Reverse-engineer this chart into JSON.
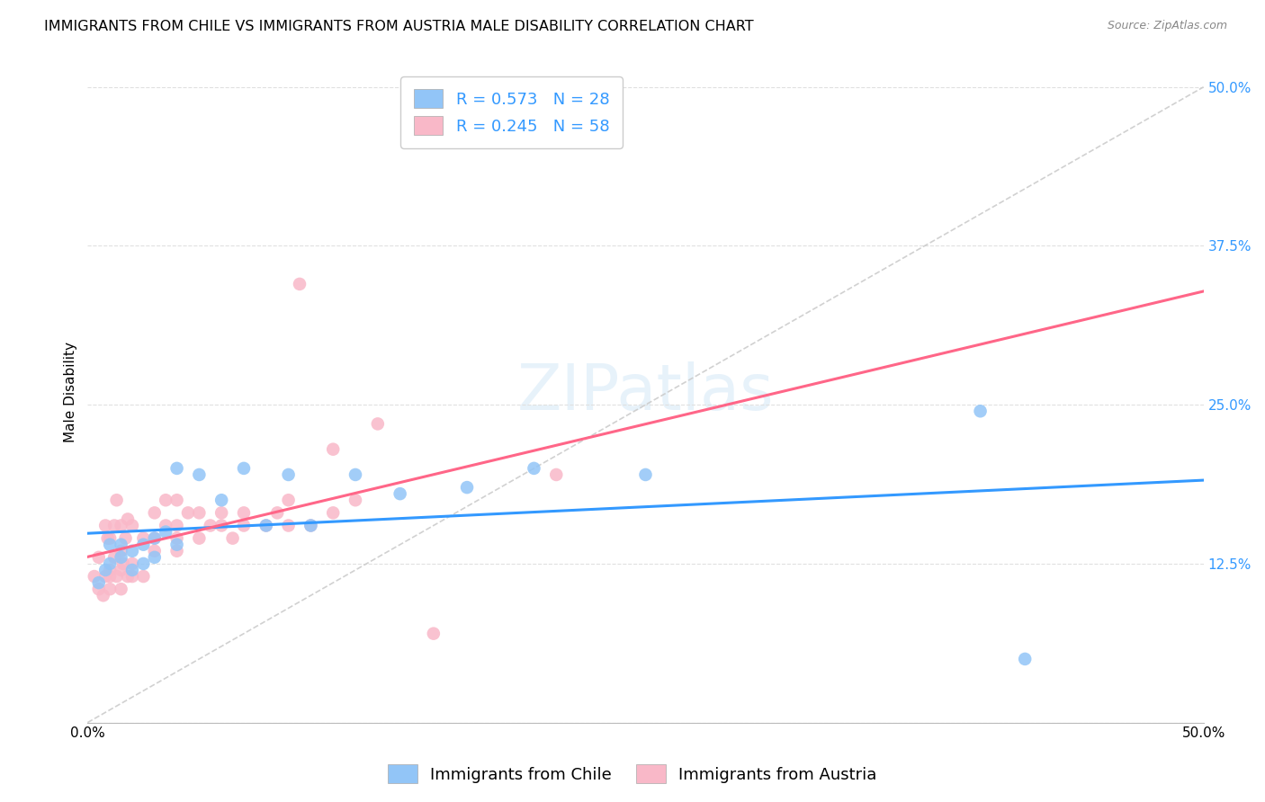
{
  "title": "IMMIGRANTS FROM CHILE VS IMMIGRANTS FROM AUSTRIA MALE DISABILITY CORRELATION CHART",
  "source": "Source: ZipAtlas.com",
  "ylabel": "Male Disability",
  "chile_color": "#92c5f7",
  "austria_color": "#f9b8c8",
  "chile_line_color": "#3399ff",
  "austria_line_color": "#ff6688",
  "chile_R": 0.573,
  "chile_N": 28,
  "austria_R": 0.245,
  "austria_N": 58,
  "chile_scatter_x": [
    0.005,
    0.008,
    0.01,
    0.01,
    0.015,
    0.015,
    0.02,
    0.02,
    0.025,
    0.025,
    0.03,
    0.03,
    0.035,
    0.04,
    0.04,
    0.05,
    0.06,
    0.07,
    0.08,
    0.09,
    0.1,
    0.12,
    0.14,
    0.17,
    0.2,
    0.25,
    0.4,
    0.42
  ],
  "chile_scatter_y": [
    0.11,
    0.12,
    0.125,
    0.14,
    0.13,
    0.14,
    0.12,
    0.135,
    0.125,
    0.14,
    0.13,
    0.145,
    0.15,
    0.14,
    0.2,
    0.195,
    0.175,
    0.2,
    0.155,
    0.195,
    0.155,
    0.195,
    0.18,
    0.185,
    0.2,
    0.195,
    0.245,
    0.05
  ],
  "austria_scatter_x": [
    0.003,
    0.005,
    0.005,
    0.007,
    0.008,
    0.008,
    0.009,
    0.01,
    0.01,
    0.01,
    0.01,
    0.012,
    0.012,
    0.013,
    0.013,
    0.015,
    0.015,
    0.015,
    0.015,
    0.016,
    0.017,
    0.018,
    0.018,
    0.02,
    0.02,
    0.02,
    0.025,
    0.025,
    0.03,
    0.03,
    0.03,
    0.035,
    0.035,
    0.04,
    0.04,
    0.04,
    0.04,
    0.045,
    0.05,
    0.05,
    0.055,
    0.06,
    0.06,
    0.065,
    0.07,
    0.07,
    0.08,
    0.085,
    0.09,
    0.09,
    0.095,
    0.1,
    0.11,
    0.11,
    0.12,
    0.13,
    0.155,
    0.21
  ],
  "austria_scatter_y": [
    0.115,
    0.105,
    0.13,
    0.1,
    0.115,
    0.155,
    0.145,
    0.105,
    0.115,
    0.12,
    0.145,
    0.13,
    0.155,
    0.115,
    0.175,
    0.105,
    0.12,
    0.135,
    0.155,
    0.125,
    0.145,
    0.115,
    0.16,
    0.115,
    0.125,
    0.155,
    0.115,
    0.145,
    0.135,
    0.145,
    0.165,
    0.155,
    0.175,
    0.135,
    0.145,
    0.155,
    0.175,
    0.165,
    0.145,
    0.165,
    0.155,
    0.155,
    0.165,
    0.145,
    0.155,
    0.165,
    0.155,
    0.165,
    0.155,
    0.175,
    0.345,
    0.155,
    0.165,
    0.215,
    0.175,
    0.235,
    0.07,
    0.195
  ],
  "background_color": "#ffffff",
  "grid_color": "#e0e0e0",
  "diagonal_color": "#cccccc",
  "title_fontsize": 11.5,
  "axis_label_fontsize": 11,
  "tick_fontsize": 11,
  "legend_fontsize": 13,
  "xlim": [
    0.0,
    0.5
  ],
  "ylim": [
    0.0,
    0.52
  ],
  "yticks": [
    0.0,
    0.125,
    0.25,
    0.375,
    0.5
  ],
  "ytick_labels": [
    "",
    "12.5%",
    "25.0%",
    "37.5%",
    "50.0%"
  ],
  "xticks": [
    0.0,
    0.125,
    0.25,
    0.375,
    0.5
  ],
  "xtick_labels": [
    "0.0%",
    "",
    "",
    "",
    "50.0%"
  ]
}
